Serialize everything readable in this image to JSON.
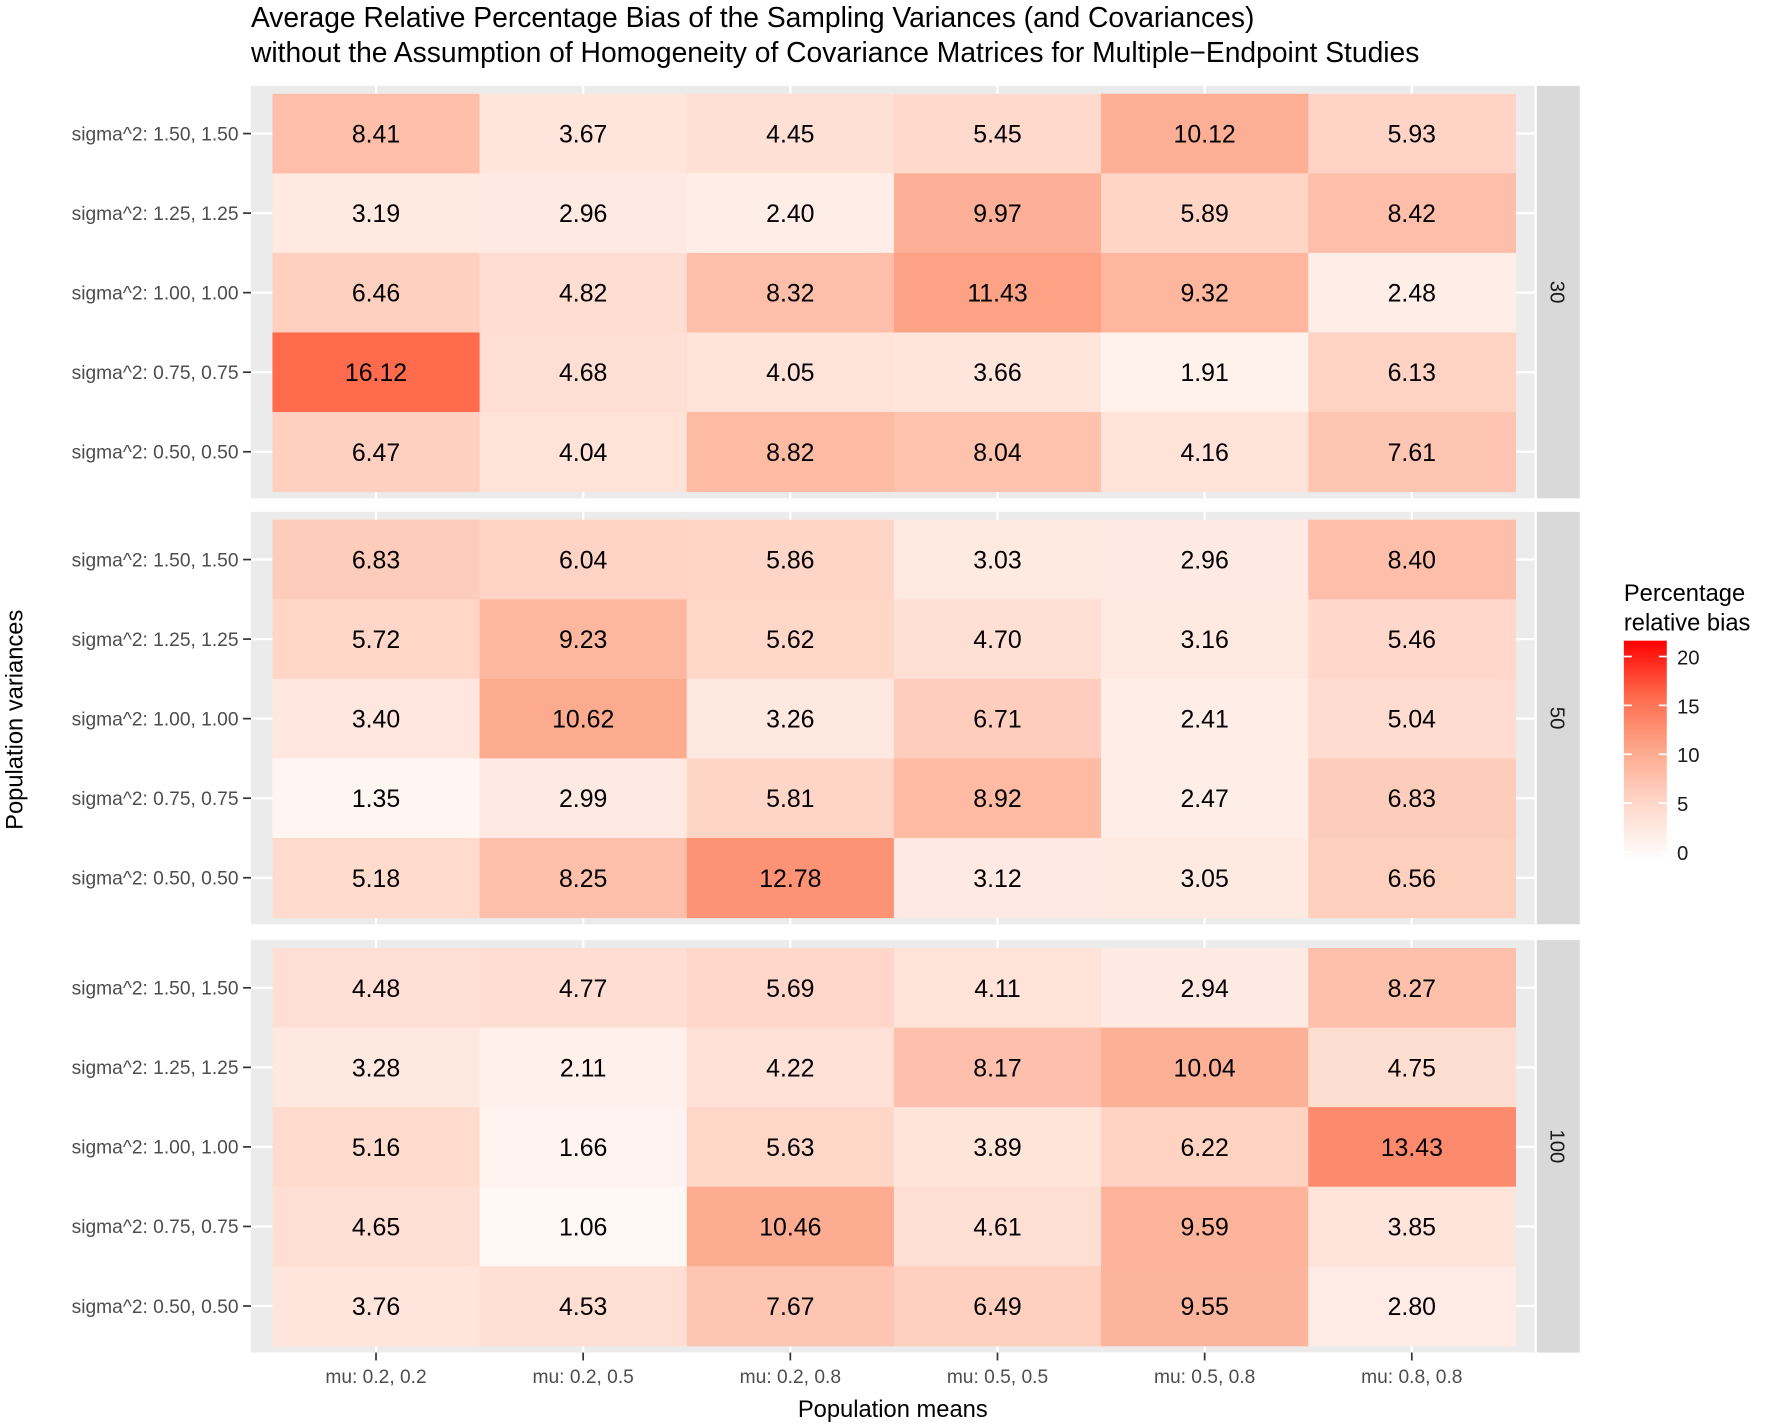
{
  "chart_data": {
    "type": "heatmap",
    "title": "Average Relative Percentage Bias of the Sampling Variances (and Covariances)",
    "subtitle": "without the Assumption of Homogeneity of Covariance Matrices for Multiple−Endpoint Studies",
    "xlabel": "Population means",
    "ylabel": "Population variances",
    "x_categories": [
      "mu: 0.2, 0.2",
      "mu: 0.2, 0.5",
      "mu: 0.2, 0.8",
      "mu: 0.5, 0.5",
      "mu: 0.5, 0.8",
      "mu: 0.8, 0.8"
    ],
    "y_categories": [
      "sigma^2: 1.50, 1.50",
      "sigma^2: 1.25, 1.25",
      "sigma^2: 1.00, 1.00",
      "sigma^2: 0.75, 0.75",
      "sigma^2: 0.50, 0.50"
    ],
    "facets": [
      {
        "label": "30",
        "values": [
          [
            "8.41",
            "3.67",
            "4.45",
            "5.45",
            "10.12",
            "5.93"
          ],
          [
            "3.19",
            "2.96",
            "2.40",
            "9.97",
            "5.89",
            "8.42"
          ],
          [
            "6.46",
            "4.82",
            "8.32",
            "11.43",
            "9.32",
            "2.48"
          ],
          [
            "16.12",
            "4.68",
            "4.05",
            "3.66",
            "1.91",
            "6.13"
          ],
          [
            "6.47",
            "4.04",
            "8.82",
            "8.04",
            "4.16",
            "7.61"
          ]
        ]
      },
      {
        "label": "50",
        "values": [
          [
            "6.83",
            "6.04",
            "5.86",
            "3.03",
            "2.96",
            "8.40"
          ],
          [
            "5.72",
            "9.23",
            "5.62",
            "4.70",
            "3.16",
            "5.46"
          ],
          [
            "3.40",
            "10.62",
            "3.26",
            "6.71",
            "2.41",
            "5.04"
          ],
          [
            "1.35",
            "2.99",
            "5.81",
            "8.92",
            "2.47",
            "6.83"
          ],
          [
            "5.18",
            "8.25",
            "12.78",
            "3.12",
            "3.05",
            "6.56"
          ]
        ]
      },
      {
        "label": "100",
        "values": [
          [
            "4.48",
            "4.77",
            "5.69",
            "4.11",
            "2.94",
            "8.27"
          ],
          [
            "3.28",
            "2.11",
            "4.22",
            "8.17",
            "10.04",
            "4.75"
          ],
          [
            "5.16",
            "1.66",
            "5.63",
            "3.89",
            "6.22",
            "13.43"
          ],
          [
            "4.65",
            "1.06",
            "10.46",
            "4.61",
            "9.59",
            "3.85"
          ],
          [
            "3.76",
            "4.53",
            "7.67",
            "6.49",
            "9.55",
            "2.80"
          ]
        ]
      }
    ],
    "legend": {
      "title_line1": "Percentage",
      "title_line2": "relative bias",
      "ticks": [
        "0",
        "5",
        "10",
        "15",
        "20"
      ],
      "range": [
        0,
        21.6
      ],
      "low_color": "#FFFFFF",
      "high_color": "#FF0000",
      "placement": "right"
    }
  }
}
